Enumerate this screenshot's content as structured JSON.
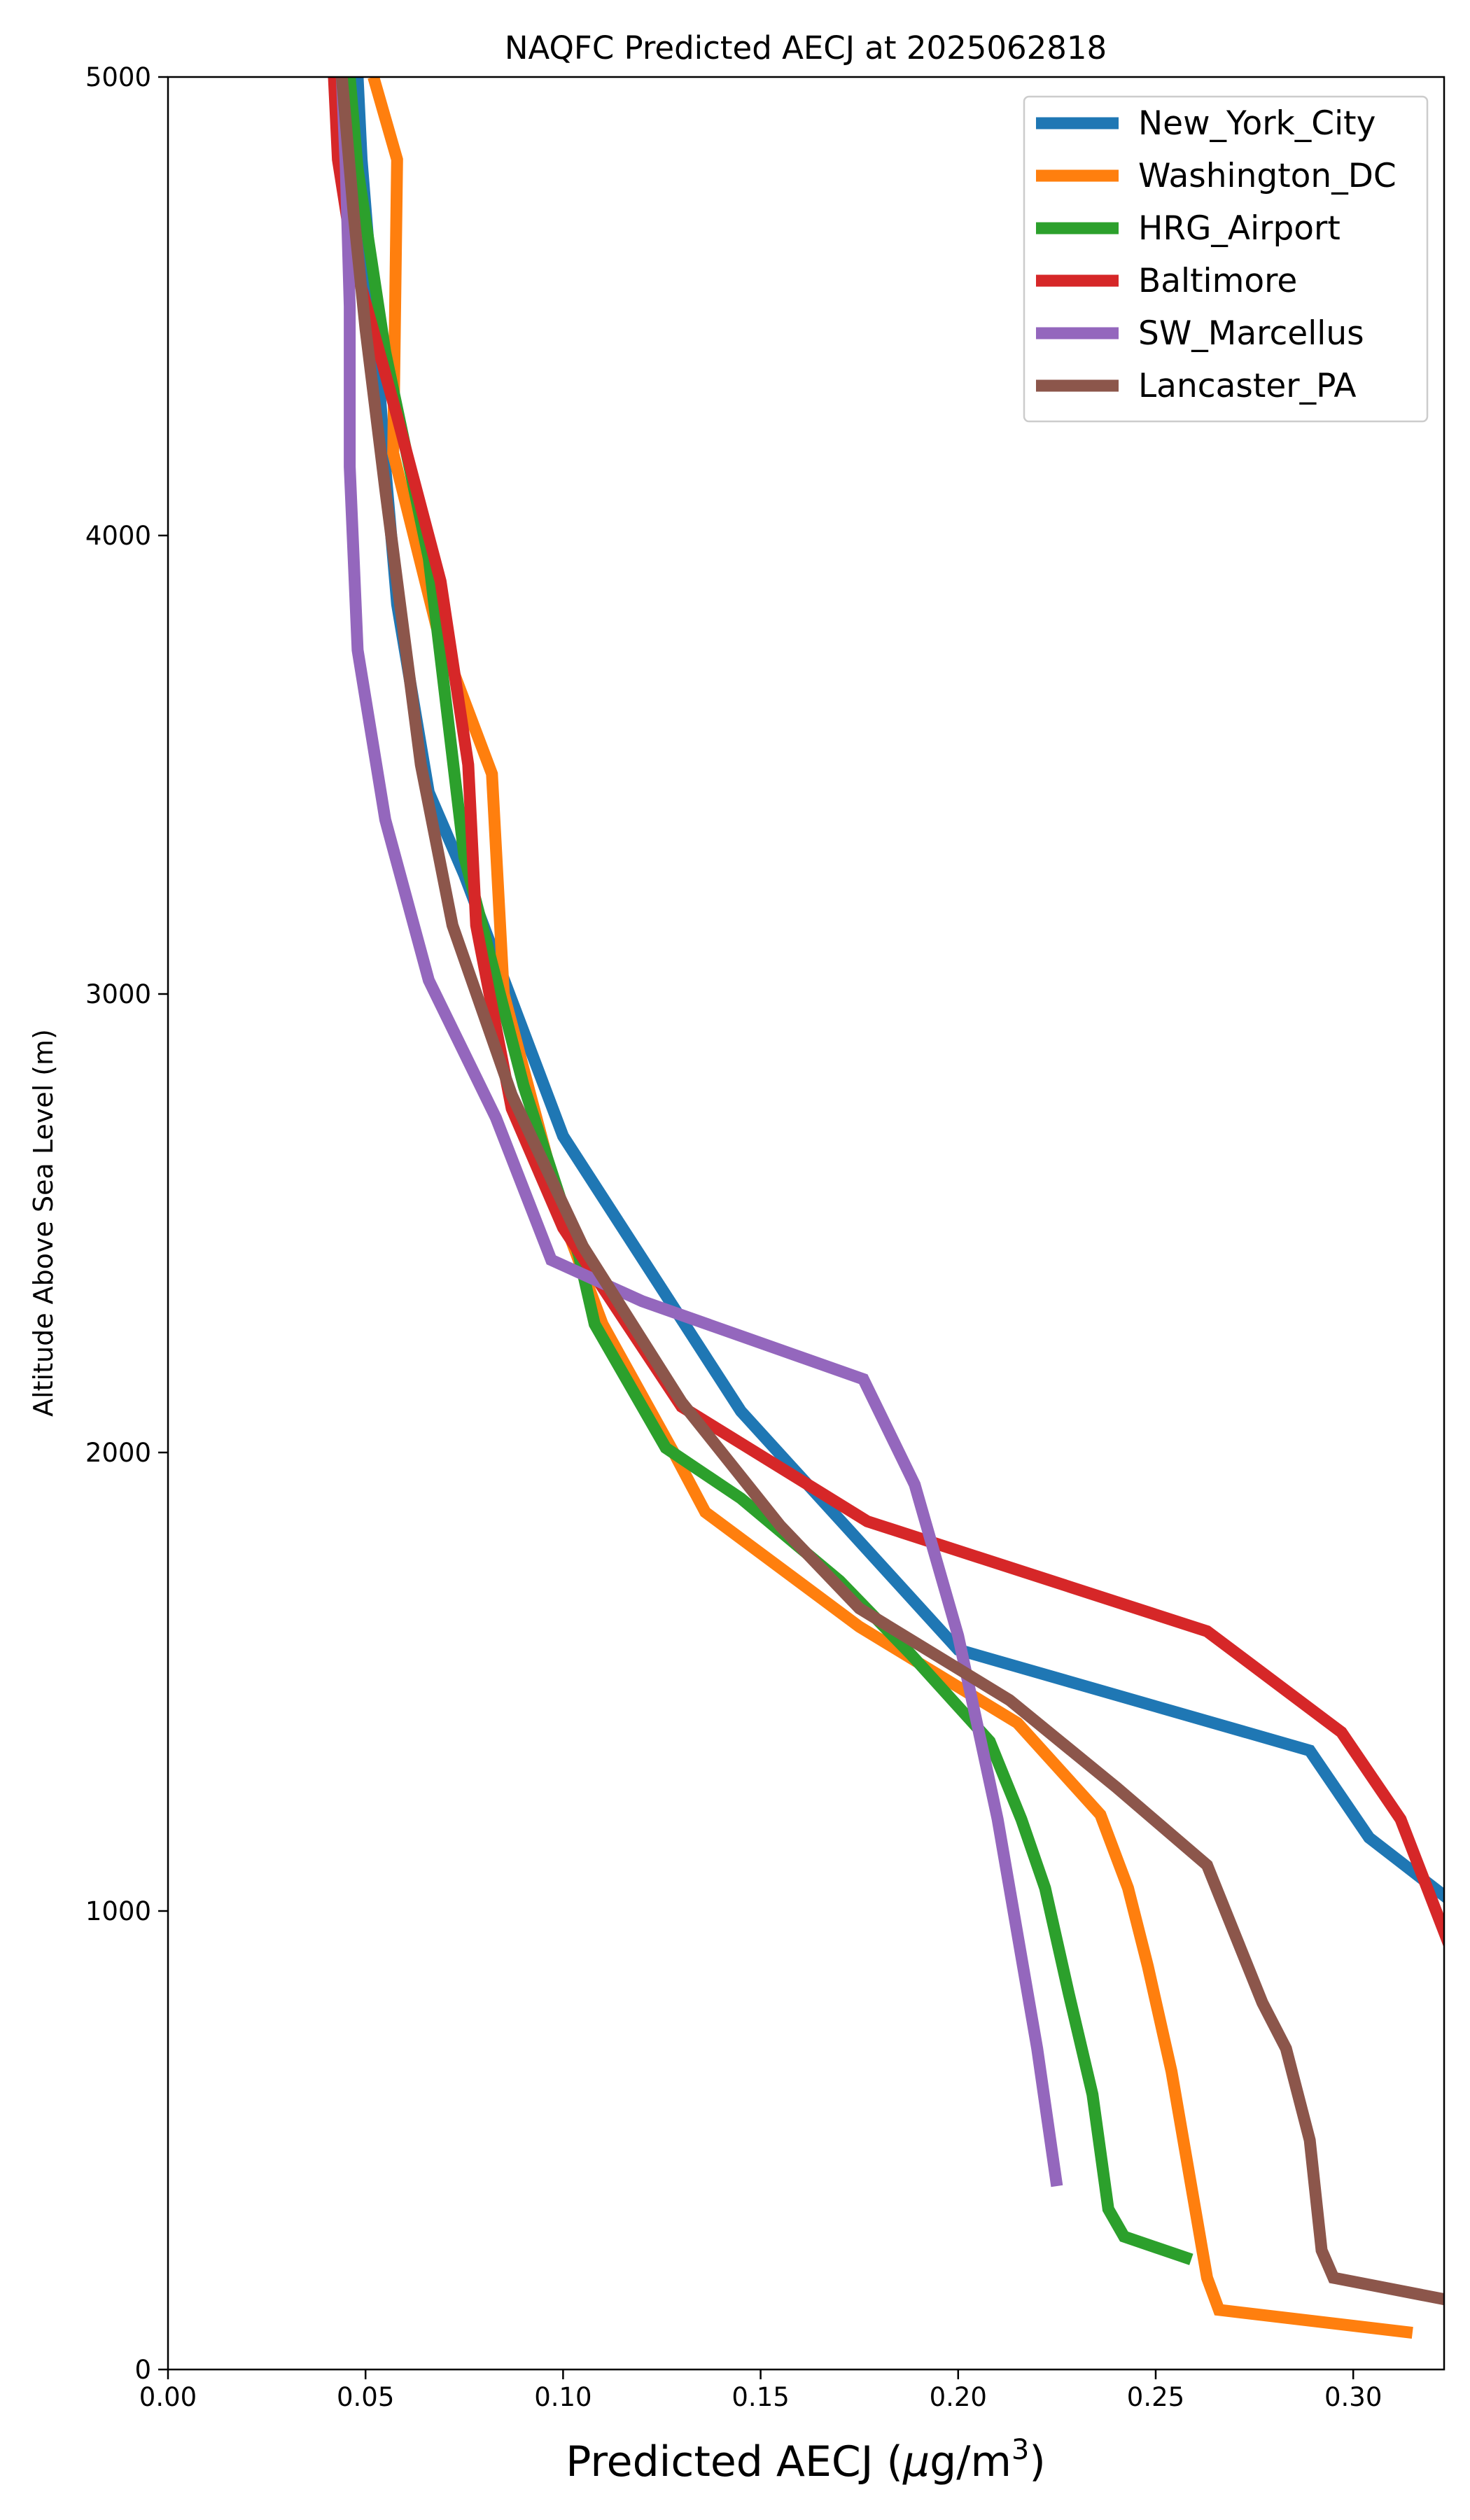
{
  "chart_data": {
    "type": "line",
    "title": "NAQFC Predicted AECJ at 2025062818",
    "xlabel_main": "Predicted AECJ (",
    "xlabel_mu": "μ",
    "xlabel_unit": "g/m",
    "xlabel_sup": "3",
    "xlabel_close": ")",
    "ylabel": "Altitude Above Sea Level (m)",
    "xlim": [
      0.0,
      0.323
    ],
    "ylim": [
      0,
      5000
    ],
    "x_ticks": [
      0.0,
      0.05,
      0.1,
      0.15,
      0.2,
      0.25,
      0.3
    ],
    "x_tick_labels": [
      "0.00",
      "0.05",
      "0.10",
      "0.15",
      "0.20",
      "0.25",
      "0.30"
    ],
    "y_ticks": [
      0,
      1000,
      2000,
      3000,
      4000,
      5000
    ],
    "y_tick_labels": [
      "0",
      "1000",
      "2000",
      "3000",
      "4000",
      "5000"
    ],
    "grid": false,
    "legend_position": "top-right",
    "series": [
      {
        "name": "New_York_City",
        "color": "#1f77b4",
        "points": [
          [
            0.325,
            1020
          ],
          [
            0.304,
            1160
          ],
          [
            0.289,
            1350
          ],
          [
            0.2,
            1570
          ],
          [
            0.145,
            2090
          ],
          [
            0.1,
            2690
          ],
          [
            0.075,
            3260
          ],
          [
            0.066,
            3440
          ],
          [
            0.058,
            3850
          ],
          [
            0.055,
            4150
          ],
          [
            0.052,
            4500
          ],
          [
            0.049,
            4820
          ],
          [
            0.048,
            5000
          ]
        ]
      },
      {
        "name": "Washington_DC",
        "color": "#ff7f0e",
        "points": [
          [
            0.315,
            80
          ],
          [
            0.266,
            130
          ],
          [
            0.263,
            200
          ],
          [
            0.259,
            400
          ],
          [
            0.254,
            650
          ],
          [
            0.248,
            880
          ],
          [
            0.243,
            1050
          ],
          [
            0.236,
            1210
          ],
          [
            0.215,
            1410
          ],
          [
            0.175,
            1620
          ],
          [
            0.136,
            1870
          ],
          [
            0.128,
            2000
          ],
          [
            0.11,
            2280
          ],
          [
            0.1,
            2510
          ],
          [
            0.085,
            3000
          ],
          [
            0.082,
            3480
          ],
          [
            0.068,
            3800
          ],
          [
            0.057,
            4180
          ],
          [
            0.058,
            4820
          ],
          [
            0.052,
            5000
          ]
        ]
      },
      {
        "name": "HRG_Airport",
        "color": "#2ca02c",
        "points": [
          [
            0.259,
            240
          ],
          [
            0.242,
            290
          ],
          [
            0.238,
            350
          ],
          [
            0.234,
            600
          ],
          [
            0.228,
            820
          ],
          [
            0.222,
            1050
          ],
          [
            0.216,
            1200
          ],
          [
            0.208,
            1370
          ],
          [
            0.188,
            1560
          ],
          [
            0.17,
            1720
          ],
          [
            0.145,
            1900
          ],
          [
            0.126,
            2010
          ],
          [
            0.108,
            2280
          ],
          [
            0.104,
            2430
          ],
          [
            0.09,
            2800
          ],
          [
            0.075,
            3300
          ],
          [
            0.066,
            3950
          ],
          [
            0.055,
            4400
          ],
          [
            0.048,
            4800
          ],
          [
            0.046,
            5000
          ]
        ]
      },
      {
        "name": "Baltimore",
        "color": "#d62728",
        "points": [
          [
            0.325,
            910
          ],
          [
            0.312,
            1200
          ],
          [
            0.297,
            1390
          ],
          [
            0.263,
            1610
          ],
          [
            0.177,
            1850
          ],
          [
            0.13,
            2100
          ],
          [
            0.1,
            2490
          ],
          [
            0.087,
            2750
          ],
          [
            0.078,
            3150
          ],
          [
            0.076,
            3500
          ],
          [
            0.069,
            3900
          ],
          [
            0.058,
            4260
          ],
          [
            0.047,
            4600
          ],
          [
            0.043,
            4820
          ],
          [
            0.042,
            5000
          ]
        ]
      },
      {
        "name": "SW_Marcellus",
        "color": "#9467bd",
        "points": [
          [
            0.225,
            400
          ],
          [
            0.22,
            700
          ],
          [
            0.21,
            1200
          ],
          [
            0.2,
            1600
          ],
          [
            0.189,
            1930
          ],
          [
            0.176,
            2160
          ],
          [
            0.12,
            2330
          ],
          [
            0.097,
            2420
          ],
          [
            0.083,
            2730
          ],
          [
            0.066,
            3030
          ],
          [
            0.055,
            3380
          ],
          [
            0.048,
            3750
          ],
          [
            0.046,
            4150
          ],
          [
            0.046,
            4500
          ],
          [
            0.045,
            4800
          ],
          [
            0.044,
            5000
          ]
        ]
      },
      {
        "name": "Lancaster_PA",
        "color": "#8c564b",
        "points": [
          [
            0.325,
            150
          ],
          [
            0.295,
            200
          ],
          [
            0.292,
            260
          ],
          [
            0.289,
            500
          ],
          [
            0.283,
            700
          ],
          [
            0.277,
            800
          ],
          [
            0.27,
            950
          ],
          [
            0.263,
            1100
          ],
          [
            0.24,
            1270
          ],
          [
            0.213,
            1460
          ],
          [
            0.175,
            1660
          ],
          [
            0.155,
            1840
          ],
          [
            0.13,
            2110
          ],
          [
            0.105,
            2450
          ],
          [
            0.087,
            2780
          ],
          [
            0.072,
            3150
          ],
          [
            0.064,
            3500
          ],
          [
            0.058,
            3900
          ],
          [
            0.055,
            4100
          ],
          [
            0.05,
            4450
          ],
          [
            0.047,
            4700
          ],
          [
            0.045,
            4900
          ],
          [
            0.044,
            5000
          ]
        ]
      }
    ]
  }
}
